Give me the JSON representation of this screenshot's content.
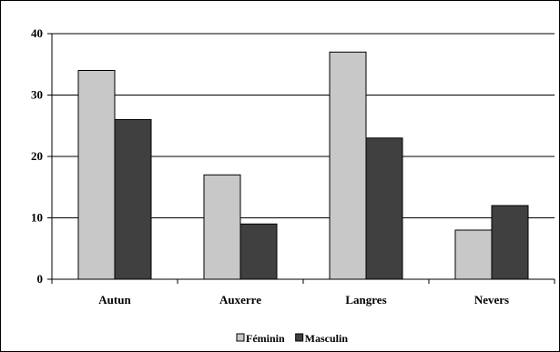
{
  "chart_data": {
    "type": "bar",
    "categories": [
      "Autun",
      "Auxerre",
      "Langres",
      "Nevers"
    ],
    "series": [
      {
        "name": "Féminin",
        "values": [
          34,
          17,
          37,
          8
        ],
        "color": "#c8c8c8"
      },
      {
        "name": "Masculin",
        "values": [
          26,
          9,
          23,
          12
        ],
        "color": "#404040"
      }
    ],
    "title": "",
    "xlabel": "",
    "ylabel": "",
    "ylim": [
      0,
      40
    ],
    "yticks": [
      0,
      10,
      20,
      30,
      40
    ],
    "grid": true,
    "legend_position": "bottom"
  }
}
